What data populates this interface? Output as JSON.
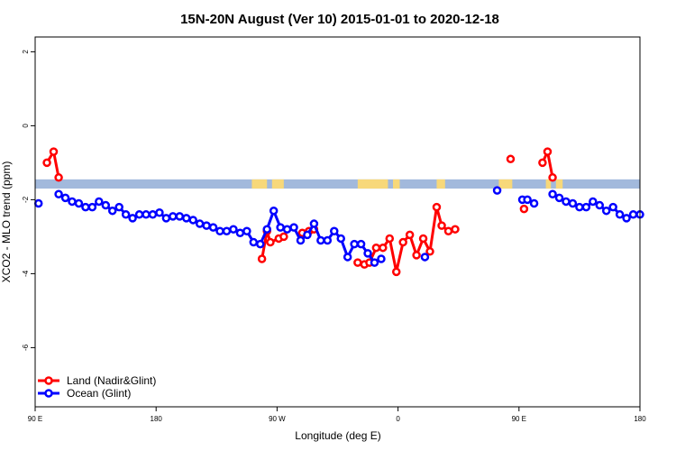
{
  "chart_data": {
    "type": "line",
    "title": "15N-20N August (Ver 10)   2015-01-01 to 2020-12-18",
    "xlabel": "Longitude (deg E)",
    "ylabel": "XCO2 - MLO trend (ppm)",
    "xlim": [
      90,
      450
    ],
    "ylim": [
      -7.6,
      2.4
    ],
    "x_ticks": [
      {
        "value": 90,
        "label": "90 E"
      },
      {
        "value": 162,
        "label": "180"
      },
      {
        "value": 234,
        "label": "90 W"
      },
      {
        "value": 306,
        "label": "0"
      },
      {
        "value": 378,
        "label": "90 E"
      },
      {
        "value": 450,
        "label": "180"
      }
    ],
    "y_ticks": [
      2,
      0,
      -2,
      -4,
      -6
    ],
    "grid": false,
    "legend_position": "bottom-left",
    "land_mask_band": {
      "y_range": [
        -1.7,
        -1.45
      ],
      "ocean_color": "#a2b9dc",
      "land_color": "#f7d87a",
      "land_segments": [
        [
          219,
          228
        ],
        [
          231,
          238
        ],
        [
          282,
          300
        ],
        [
          303,
          307
        ],
        [
          329,
          334
        ],
        [
          366,
          374
        ],
        [
          394,
          397
        ],
        [
          400,
          404
        ]
      ]
    },
    "series": [
      {
        "name": "Land (Nadir&Glint)",
        "color": "#ff0000",
        "segments": [
          [
            [
              97,
              -1.0
            ],
            [
              101,
              -0.7
            ],
            [
              104,
              -1.4
            ]
          ],
          [
            [
              225,
              -3.6
            ],
            [
              228,
              -2.85
            ],
            [
              230,
              -3.15
            ],
            [
              235,
              -3.05
            ],
            [
              238,
              -3.0
            ]
          ],
          [
            [
              249,
              -2.9
            ],
            [
              253,
              -2.85
            ],
            [
              256,
              -2.8
            ]
          ],
          [
            [
              282,
              -3.7
            ],
            [
              286,
              -3.75
            ],
            [
              289,
              -3.7
            ],
            [
              293,
              -3.3
            ],
            [
              297,
              -3.3
            ],
            [
              301,
              -3.05
            ],
            [
              305,
              -3.95
            ],
            [
              309,
              -3.15
            ],
            [
              313,
              -2.95
            ],
            [
              317,
              -3.5
            ],
            [
              321,
              -3.05
            ],
            [
              325,
              -3.4
            ],
            [
              329,
              -2.2
            ],
            [
              332,
              -2.7
            ],
            [
              336,
              -2.85
            ],
            [
              340,
              -2.8
            ]
          ]
        ],
        "points": [
          [
            373,
            -0.9
          ],
          [
            381,
            -2.25
          ]
        ],
        "trailing_segment": [
          [
            392,
            -1.0
          ],
          [
            395,
            -0.7
          ],
          [
            398,
            -1.4
          ]
        ]
      },
      {
        "name": "Ocean (Glint)",
        "color": "#0000ff",
        "segments": [
          [
            [
              92,
              -2.1
            ]
          ],
          [
            [
              104,
              -1.85
            ],
            [
              108,
              -1.95
            ],
            [
              112,
              -2.05
            ],
            [
              116,
              -2.1
            ],
            [
              120,
              -2.2
            ],
            [
              124,
              -2.2
            ],
            [
              128,
              -2.05
            ],
            [
              132,
              -2.15
            ],
            [
              136,
              -2.3
            ],
            [
              140,
              -2.2
            ],
            [
              144,
              -2.4
            ],
            [
              148,
              -2.5
            ],
            [
              152,
              -2.4
            ],
            [
              156,
              -2.4
            ],
            [
              160,
              -2.4
            ],
            [
              164,
              -2.35
            ],
            [
              168,
              -2.5
            ],
            [
              172,
              -2.45
            ],
            [
              176,
              -2.45
            ],
            [
              180,
              -2.5
            ],
            [
              184,
              -2.55
            ],
            [
              188,
              -2.65
            ],
            [
              192,
              -2.7
            ],
            [
              196,
              -2.75
            ],
            [
              200,
              -2.85
            ],
            [
              204,
              -2.85
            ],
            [
              208,
              -2.8
            ],
            [
              212,
              -2.9
            ],
            [
              216,
              -2.85
            ],
            [
              220,
              -3.15
            ],
            [
              224,
              -3.2
            ],
            [
              228,
              -2.8
            ],
            [
              232,
              -2.3
            ],
            [
              236,
              -2.75
            ],
            [
              240,
              -2.8
            ],
            [
              244,
              -2.75
            ],
            [
              248,
              -3.1
            ],
            [
              252,
              -2.95
            ],
            [
              256,
              -2.65
            ],
            [
              260,
              -3.1
            ],
            [
              264,
              -3.1
            ],
            [
              268,
              -2.85
            ],
            [
              272,
              -3.05
            ],
            [
              276,
              -3.55
            ],
            [
              280,
              -3.2
            ],
            [
              284,
              -3.2
            ],
            [
              288,
              -3.45
            ],
            [
              292,
              -3.7
            ],
            [
              296,
              -3.6
            ]
          ],
          [
            [
              322,
              -3.55
            ]
          ],
          [
            [
              365,
              -1.75
            ]
          ],
          [
            [
              380,
              -2.0
            ],
            [
              383,
              -2.0
            ],
            [
              387,
              -2.1
            ]
          ],
          [
            [
              398,
              -1.85
            ],
            [
              402,
              -1.95
            ],
            [
              406,
              -2.05
            ],
            [
              410,
              -2.1
            ],
            [
              414,
              -2.2
            ],
            [
              418,
              -2.2
            ],
            [
              422,
              -2.05
            ],
            [
              426,
              -2.15
            ],
            [
              430,
              -2.3
            ],
            [
              434,
              -2.2
            ],
            [
              438,
              -2.4
            ],
            [
              442,
              -2.5
            ],
            [
              446,
              -2.4
            ],
            [
              450,
              -2.4
            ]
          ]
        ]
      }
    ]
  }
}
